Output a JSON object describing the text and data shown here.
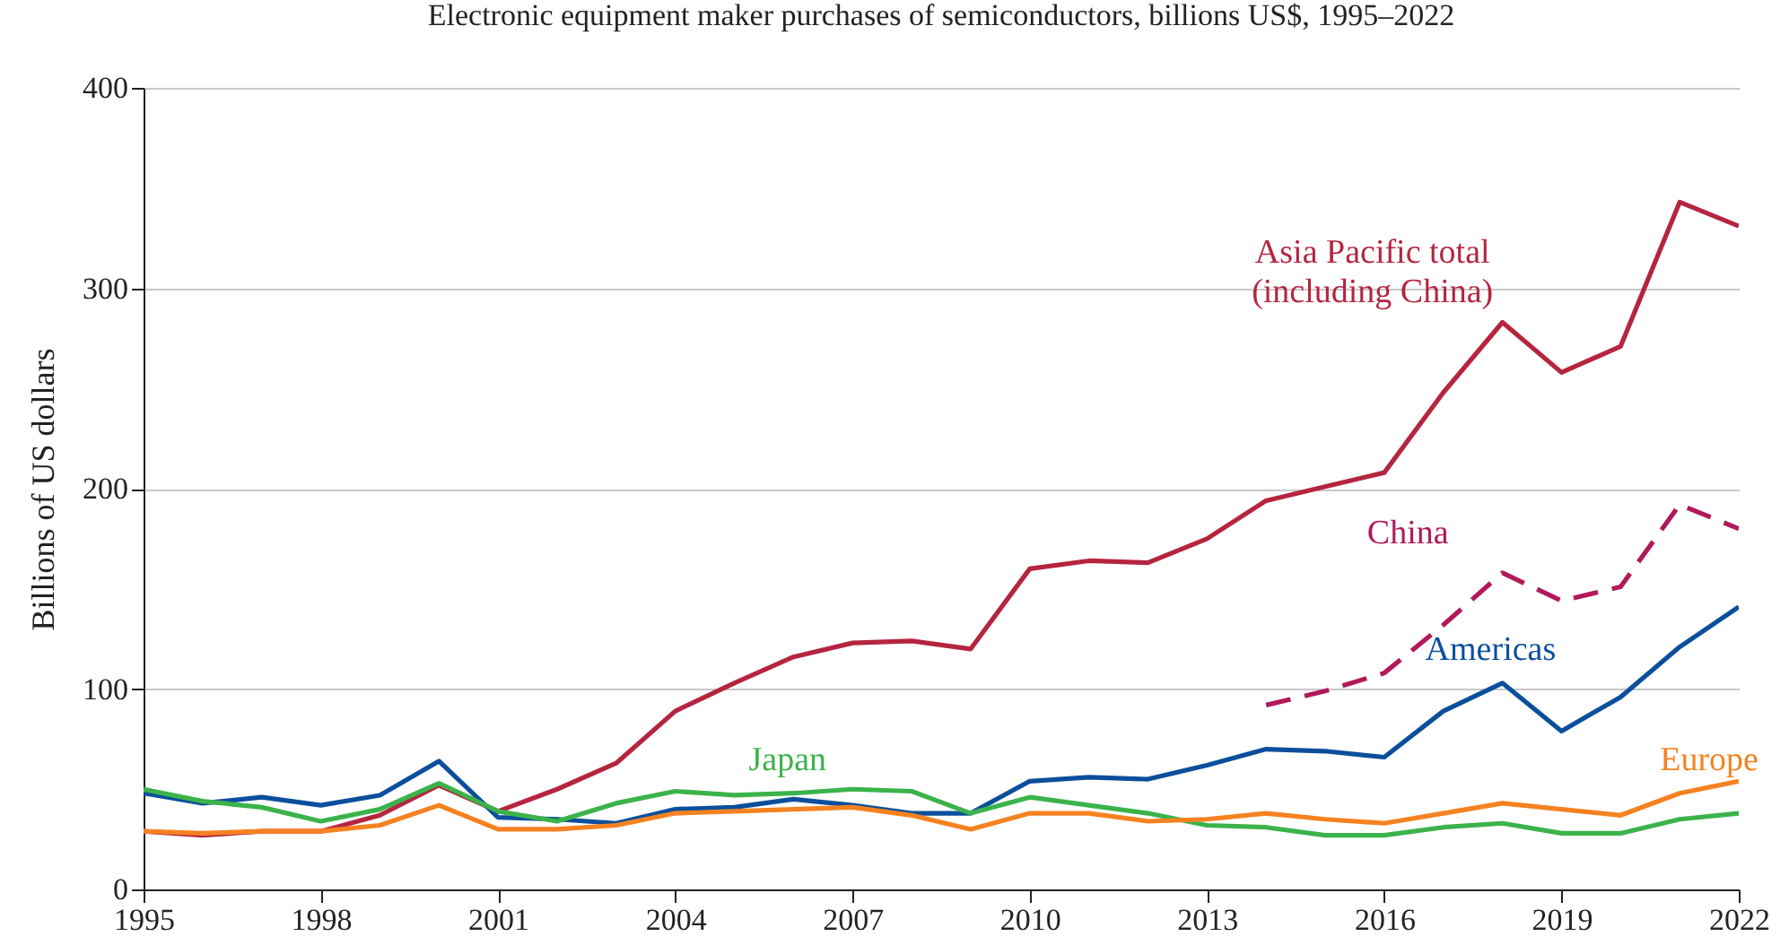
{
  "chart_data": {
    "type": "line",
    "title": "Electronic equipment maker purchases of semiconductors, billions US$, 1995–2022",
    "ylabel": "Billions of US dollars",
    "x": [
      1995,
      1996,
      1997,
      1998,
      1999,
      2000,
      2001,
      2002,
      2003,
      2004,
      2005,
      2006,
      2007,
      2008,
      2009,
      2010,
      2011,
      2012,
      2013,
      2014,
      2015,
      2016,
      2017,
      2018,
      2019,
      2020,
      2021,
      2022
    ],
    "series": [
      {
        "name": "Asia Pacific total (including China)",
        "color": "#b5253f",
        "line_style": "solid",
        "values": [
          29,
          27,
          29,
          29,
          37,
          52,
          39,
          50,
          63,
          89,
          103,
          116,
          123,
          124,
          120,
          160,
          164,
          163,
          175,
          194,
          201,
          208,
          248,
          283,
          258,
          271,
          343,
          331
        ]
      },
      {
        "name": "China",
        "color": "#b0195a",
        "line_style": "dashed",
        "x": [
          2014,
          2015,
          2016,
          2017,
          2018,
          2019,
          2020,
          2021,
          2022
        ],
        "values": [
          92,
          99,
          108,
          132,
          158,
          144,
          151,
          192,
          180
        ]
      },
      {
        "name": "Americas",
        "color": "#0b4f9c",
        "line_style": "solid",
        "values": [
          48,
          43,
          46,
          42,
          47,
          64,
          36,
          35,
          33,
          40,
          41,
          45,
          42,
          38,
          38,
          54,
          56,
          55,
          62,
          70,
          69,
          66,
          89,
          103,
          79,
          96,
          121,
          141
        ]
      },
      {
        "name": "Japan",
        "color": "#3bb34a",
        "line_style": "solid",
        "values": [
          50,
          44,
          41,
          34,
          40,
          53,
          39,
          34,
          43,
          49,
          47,
          48,
          50,
          49,
          38,
          46,
          42,
          38,
          32,
          31,
          27,
          27,
          31,
          33,
          28,
          28,
          35,
          38
        ]
      },
      {
        "name": "Europe",
        "color": "#f58220",
        "line_style": "solid",
        "values": [
          29,
          28,
          29,
          29,
          32,
          42,
          30,
          30,
          32,
          38,
          39,
          40,
          41,
          37,
          30,
          38,
          38,
          34,
          35,
          38,
          35,
          33,
          38,
          43,
          40,
          37,
          48,
          54
        ]
      }
    ],
    "xlim": [
      1995,
      2022
    ],
    "xticks": [
      1995,
      1998,
      2001,
      2004,
      2007,
      2010,
      2013,
      2016,
      2019,
      2022
    ],
    "ylim": [
      0,
      400
    ],
    "yticks": [
      0,
      100,
      200,
      300,
      400
    ],
    "grid": "y",
    "marker": "none"
  }
}
